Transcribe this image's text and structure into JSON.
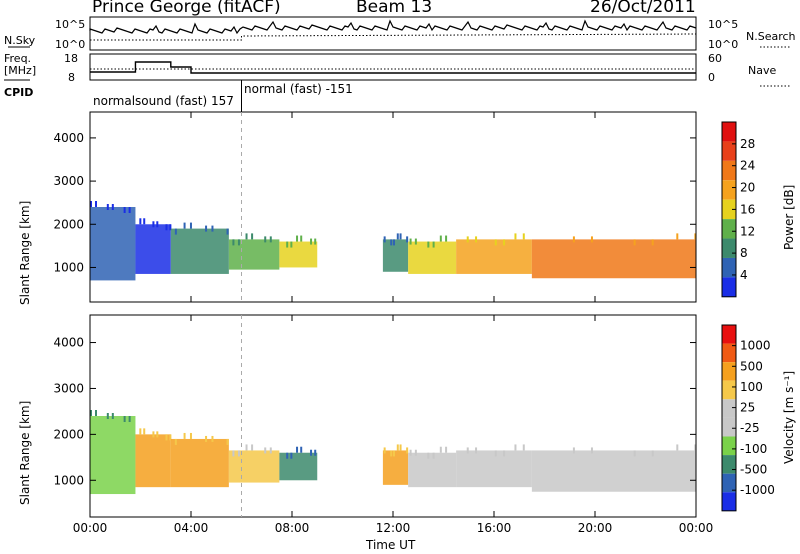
{
  "header": {
    "station": "Prince George (fitACF)",
    "beam": "Beam 13",
    "date": "26/Oct/2011"
  },
  "panels": {
    "nsky_label": "N.Sky",
    "nsearch_label": "N.Search",
    "n_top": "10^5",
    "n_bottom": "10^0",
    "freq_label_1": "Freq.",
    "freq_label_2": "[MHz]",
    "freq_top": "18",
    "freq_bottom": "8",
    "nave_label": "Nave",
    "nave_top": "60",
    "nave_bottom": "0",
    "cpid_label": "CPID",
    "cpid_1": "normalsound (fast) 157",
    "cpid_2": "normal (fast) -151"
  },
  "colors": {
    "power_scale": [
      "#1a2ee6",
      "#2f63b4",
      "#3c8a6c",
      "#5fb04a",
      "#e6d21e",
      "#f5a21e",
      "#f07818",
      "#e8401a",
      "#e01010"
    ],
    "velocity_scale": [
      "#e81010",
      "#f05a14",
      "#f5a01e",
      "#f5c84a",
      "#c8c8c8",
      "#c8c8c8",
      "#7ad24a",
      "#3c8a6c",
      "#2f63b4",
      "#1a2ee6"
    ]
  },
  "chart_data": [
    {
      "type": "heatmap",
      "name": "power",
      "ylabel": "Slant Range [km]",
      "yticks": [
        "1000",
        "2000",
        "3000",
        "4000"
      ],
      "ylim": [
        200,
        4600
      ],
      "xlim_hours": [
        0,
        24
      ],
      "colorbar_label": "Power [dB]",
      "colorbar_ticks": [
        "4",
        "8",
        "12",
        "16",
        "20",
        "24",
        "28"
      ],
      "echo_bands": [
        {
          "start": 0.0,
          "end": 1.8,
          "low": 700,
          "high": 2400,
          "level": 7
        },
        {
          "start": 1.8,
          "end": 3.2,
          "low": 850,
          "high": 2000,
          "level": 8
        },
        {
          "start": 3.2,
          "end": 5.5,
          "low": 850,
          "high": 1900,
          "level": 6
        },
        {
          "start": 5.5,
          "end": 7.5,
          "low": 950,
          "high": 1650,
          "level": 5
        },
        {
          "start": 7.5,
          "end": 9.0,
          "low": 1000,
          "high": 1600,
          "level": 4
        },
        {
          "start": 11.6,
          "end": 12.6,
          "low": 900,
          "high": 1650,
          "level": 6
        },
        {
          "start": 12.6,
          "end": 14.5,
          "low": 850,
          "high": 1600,
          "level": 4
        },
        {
          "start": 14.5,
          "end": 17.5,
          "low": 850,
          "high": 1650,
          "level": 3
        },
        {
          "start": 17.5,
          "end": 24.0,
          "low": 750,
          "high": 1650,
          "level": 2
        }
      ]
    },
    {
      "type": "heatmap",
      "name": "velocity",
      "xlabel": "Time UT",
      "ylabel": "Slant Range [km]",
      "xticks": [
        "00:00",
        "04:00",
        "08:00",
        "12:00",
        "16:00",
        "20:00",
        "00:00"
      ],
      "yticks": [
        "1000",
        "2000",
        "3000",
        "4000"
      ],
      "ylim": [
        200,
        4600
      ],
      "xlim_hours": [
        0,
        24
      ],
      "colorbar_label": "Velocity [m s⁻¹]",
      "colorbar_ticks": [
        "1000",
        "500",
        "100",
        "25",
        "-25",
        "-100",
        "-500",
        "-1000"
      ],
      "echo_bands": [
        {
          "start": 0.0,
          "end": 1.8,
          "low": 700,
          "high": 2400,
          "level": 6
        },
        {
          "start": 1.8,
          "end": 3.2,
          "low": 850,
          "high": 2000,
          "level": 2
        },
        {
          "start": 3.2,
          "end": 5.5,
          "low": 850,
          "high": 1900,
          "level": 2
        },
        {
          "start": 5.5,
          "end": 7.5,
          "low": 950,
          "high": 1650,
          "level": 3
        },
        {
          "start": 7.5,
          "end": 9.0,
          "low": 1000,
          "high": 1600,
          "level": 7
        },
        {
          "start": 11.6,
          "end": 12.6,
          "low": 900,
          "high": 1650,
          "level": 2
        },
        {
          "start": 12.6,
          "end": 14.5,
          "low": 850,
          "high": 1600,
          "level": 4
        },
        {
          "start": 14.5,
          "end": 17.5,
          "low": 850,
          "high": 1650,
          "level": 4
        },
        {
          "start": 17.5,
          "end": 24.0,
          "low": 750,
          "high": 1650,
          "level": 4
        }
      ]
    }
  ]
}
